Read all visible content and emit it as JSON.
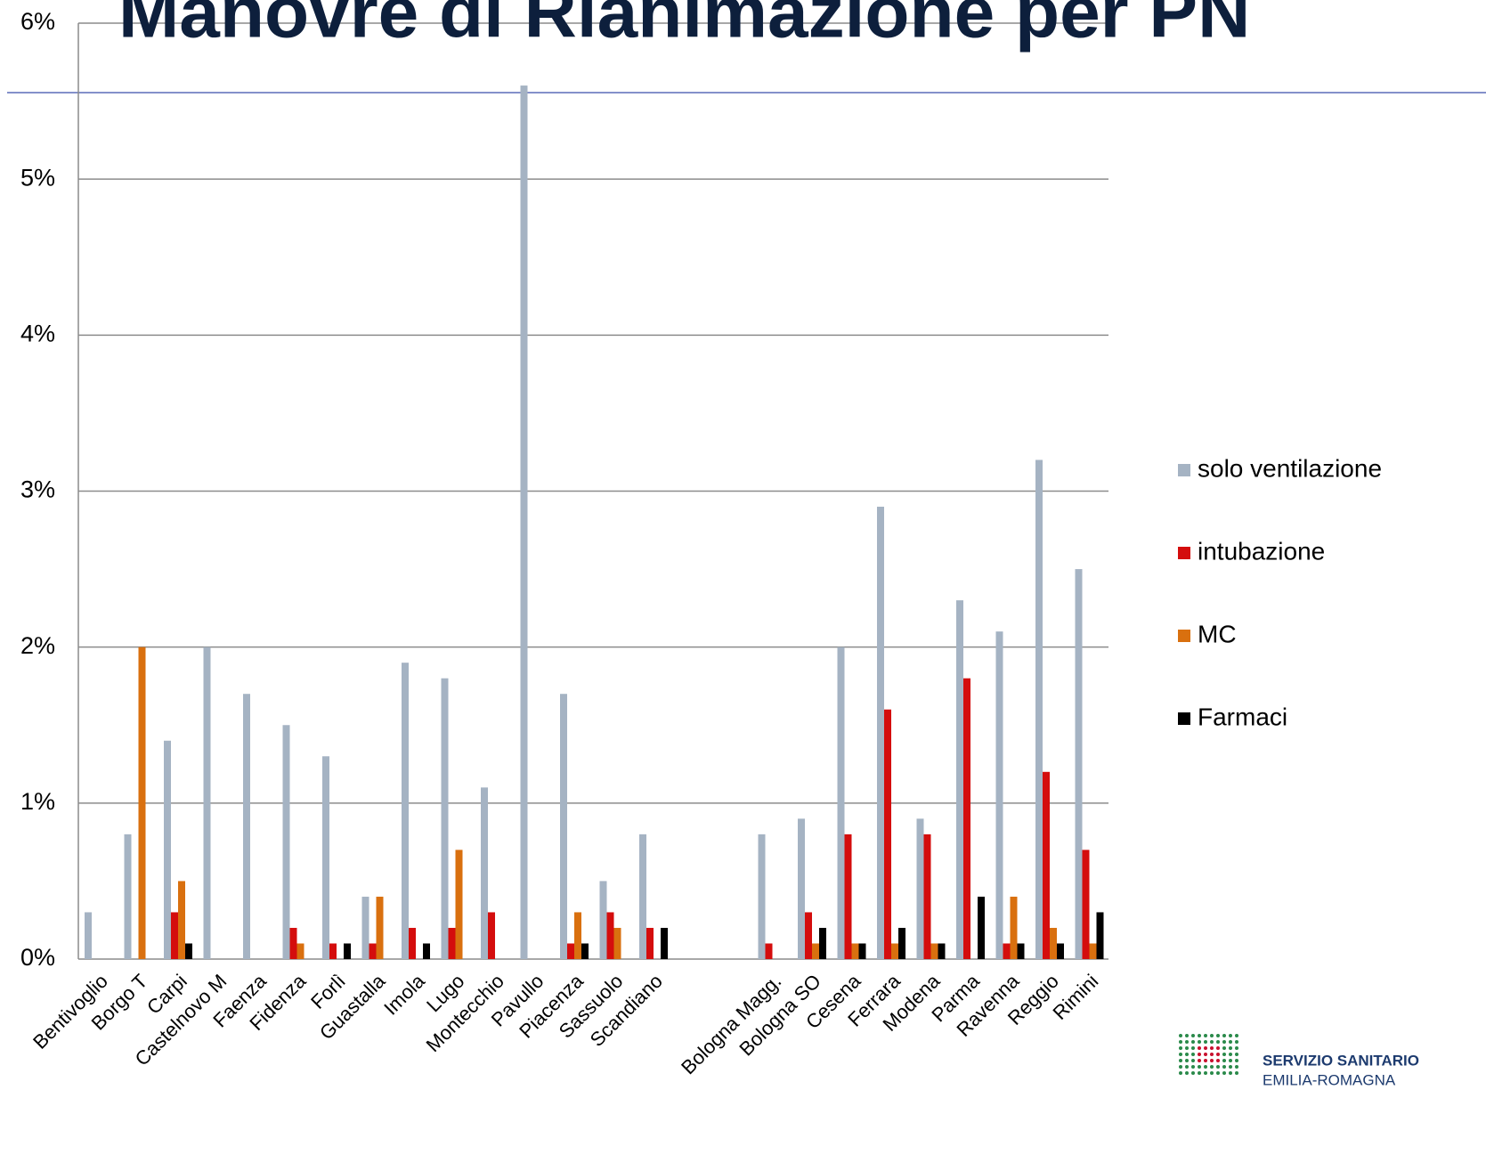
{
  "chart_data": {
    "type": "bar",
    "title": "Manovre di Rianimazione  per PN",
    "logo": [
      "SERVIZIO SANITARIO",
      "EMILIA-ROMAGNA"
    ],
    "categories": [
      "Bentivoglio",
      "Borgo T",
      "Carpi",
      "Castelnovo M",
      "Faenza",
      "Fidenza",
      "Forlì",
      "Guastalla",
      "Imola",
      "Lugo",
      "Montecchio",
      "Pavullo",
      "Piacenza",
      "Sassuolo",
      "Scandiano",
      null,
      null,
      "Bologna Magg.",
      "Bologna SO",
      "Cesena",
      "Ferrara",
      "Modena",
      "Parma",
      "Ravenna",
      "Reggio",
      "Rimini"
    ],
    "series": [
      {
        "name": "solo ventilazione",
        "color": "#a5b3c3",
        "values": [
          0.3,
          0.8,
          1.4,
          2.0,
          1.7,
          1.5,
          1.3,
          0.4,
          1.9,
          1.8,
          1.1,
          5.6,
          1.7,
          0.5,
          0.8,
          null,
          null,
          0.8,
          0.9,
          2.0,
          2.9,
          0.9,
          2.3,
          2.1,
          3.2,
          2.5
        ]
      },
      {
        "name": "intubazione",
        "color": "#d40d0d",
        "values": [
          0,
          0,
          0.3,
          0,
          0,
          0.2,
          0.1,
          0.1,
          0.2,
          0.2,
          0.3,
          0,
          0.1,
          0.3,
          0.2,
          null,
          null,
          0.1,
          0.3,
          0.8,
          1.6,
          0.8,
          1.8,
          0.1,
          1.2,
          0.7
        ]
      },
      {
        "name": "MC",
        "color": "#d9700f",
        "values": [
          0,
          2.0,
          0.5,
          0,
          0,
          0.1,
          0,
          0.4,
          0,
          0.7,
          0,
          0,
          0.3,
          0.2,
          0,
          null,
          null,
          0,
          0.1,
          0.1,
          0.1,
          0.1,
          0,
          0.4,
          0.2,
          0.1
        ]
      },
      {
        "name": "Farmaci",
        "color": "#000000",
        "values": [
          0,
          0,
          0.1,
          0,
          0,
          0,
          0.1,
          0,
          0.1,
          0,
          0,
          0,
          0.1,
          0,
          0.2,
          null,
          null,
          0,
          0.2,
          0.1,
          0.2,
          0.1,
          0.4,
          0.1,
          0.1,
          0.3
        ]
      }
    ],
    "ylim": [
      0,
      6
    ],
    "yticks": [
      {
        "value": 0,
        "label": "0%"
      },
      {
        "value": 1,
        "label": "1%"
      },
      {
        "value": 2,
        "label": "2%"
      },
      {
        "value": 3,
        "label": "3%"
      },
      {
        "value": 4,
        "label": "4%"
      },
      {
        "value": 5,
        "label": "5%"
      },
      {
        "value": 6,
        "label": "6%"
      }
    ],
    "grid": true,
    "legend": "right"
  }
}
